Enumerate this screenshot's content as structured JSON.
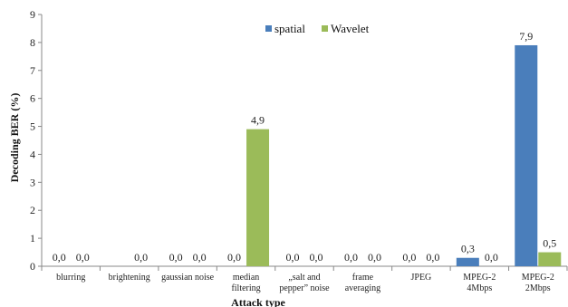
{
  "chart_data": {
    "type": "bar",
    "title": "",
    "xlabel": "Attack type",
    "ylabel": "Decoding BER (%)",
    "ylim": [
      0,
      9
    ],
    "yticks": [
      0,
      1,
      2,
      3,
      4,
      5,
      6,
      7,
      8,
      9
    ],
    "grid": false,
    "legend_position": "top-center",
    "categories": [
      [
        "blurring"
      ],
      [
        "brightening"
      ],
      [
        "gaussian noise"
      ],
      [
        "median",
        "filtering"
      ],
      [
        "„salt and",
        "pepper” noise"
      ],
      [
        "frame",
        "averaging"
      ],
      [
        "JPEG"
      ],
      [
        "MPEG-2",
        "4Mbps"
      ],
      [
        "MPEG-2",
        "2Mbps"
      ]
    ],
    "series": [
      {
        "name": "spatial",
        "color": "#4a7ebb",
        "values": [
          0.0,
          null,
          0.0,
          0.0,
          0.0,
          0.0,
          0.0,
          0.3,
          7.9
        ],
        "labels": [
          "0,0",
          "",
          "0,0",
          "0,0",
          "0,0",
          "0,0",
          "0,0",
          "0,3",
          "7,9"
        ]
      },
      {
        "name": "Wavelet",
        "color": "#9bbb59",
        "values": [
          0.0,
          0.0,
          0.0,
          4.9,
          0.0,
          0.0,
          0.0,
          0.0,
          0.5
        ],
        "labels": [
          "0,0",
          "0,0",
          "0,0",
          "4,9",
          "0,0",
          "0,0",
          "0,0",
          "0,0",
          "0,5"
        ]
      }
    ]
  }
}
